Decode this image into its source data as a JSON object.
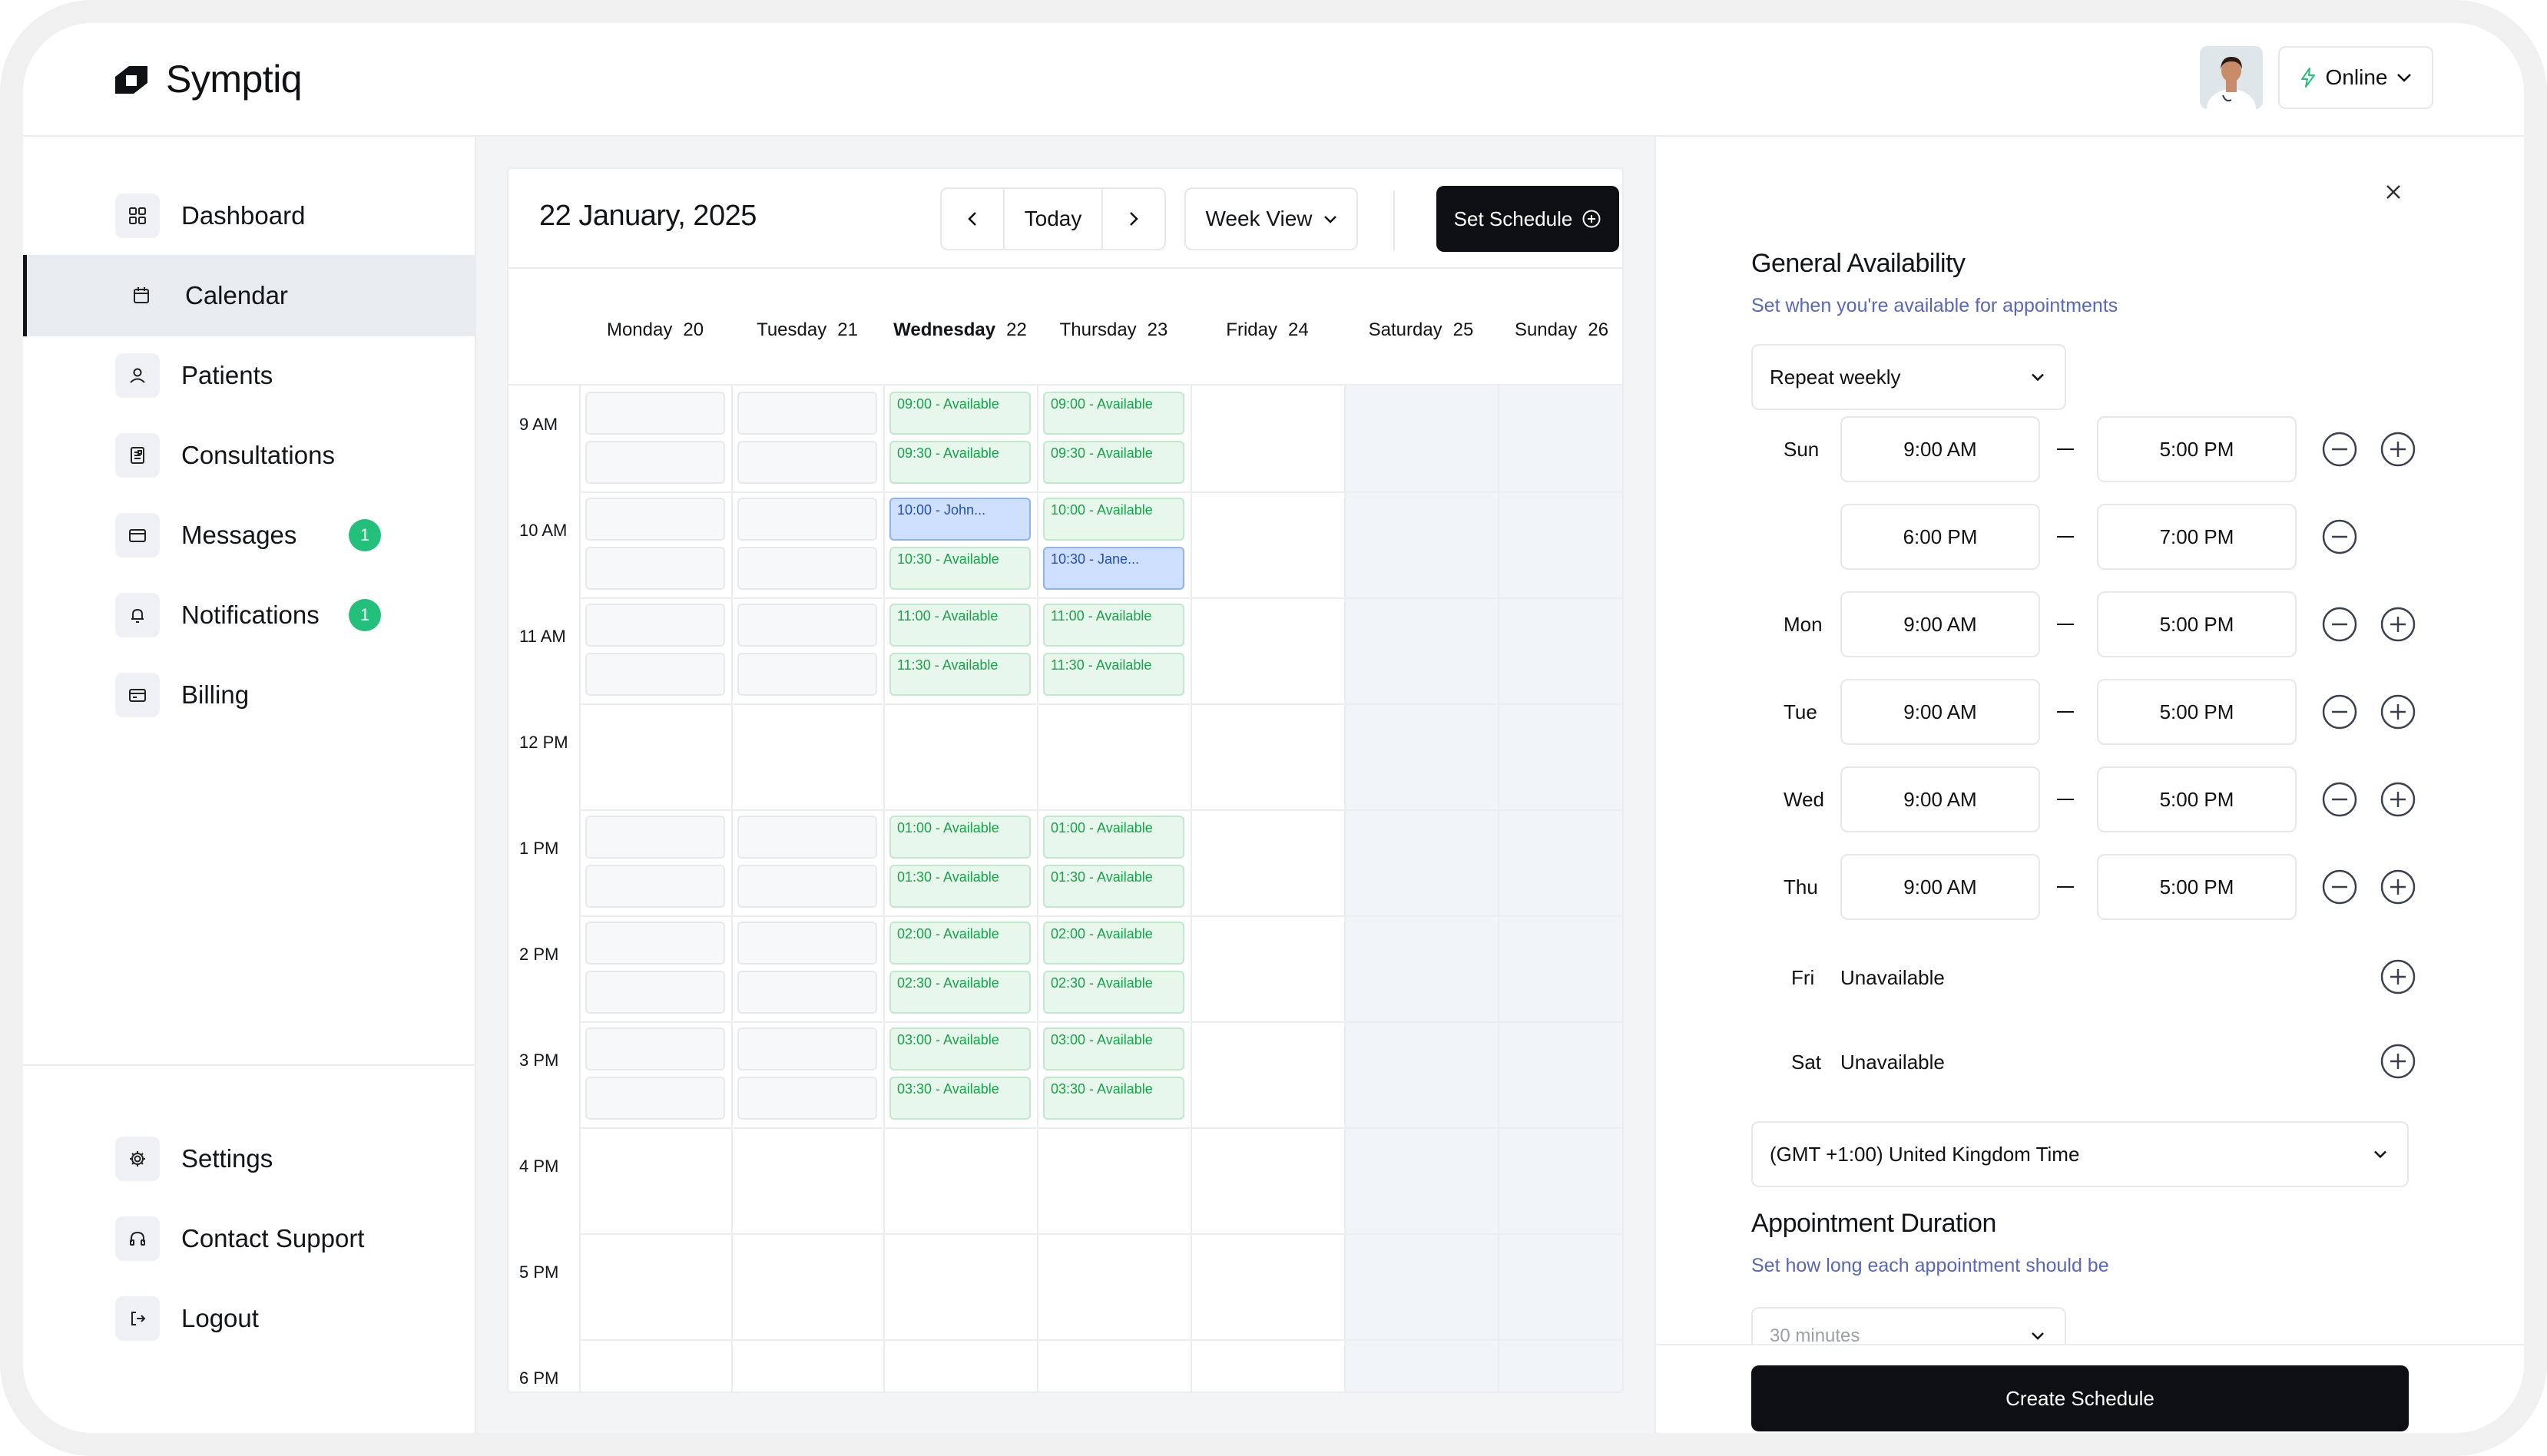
{
  "app": {
    "name": "Symptiq"
  },
  "header": {
    "status_label": "Online"
  },
  "sidebar": {
    "main_items": [
      {
        "label": "Dashboard",
        "icon": "dashboard-icon"
      },
      {
        "label": "Calendar",
        "icon": "calendar-icon",
        "active": true
      },
      {
        "label": "Patients",
        "icon": "user-icon"
      },
      {
        "label": "Consultations",
        "icon": "clipboard-icon"
      },
      {
        "label": "Messages",
        "icon": "mail-icon",
        "badge": "1"
      },
      {
        "label": "Notifications",
        "icon": "bell-icon",
        "badge": "1"
      },
      {
        "label": "Billing",
        "icon": "credit-card-icon"
      }
    ],
    "bottom_items": [
      {
        "label": "Settings",
        "icon": "gear-icon"
      },
      {
        "label": "Contact Support",
        "icon": "headset-icon"
      },
      {
        "label": "Logout",
        "icon": "logout-icon"
      }
    ]
  },
  "calendar": {
    "date_title": "22 January, 2025",
    "today_label": "Today",
    "view_label": "Week View",
    "set_schedule_label": "Set Schedule",
    "days": [
      {
        "name": "Monday",
        "num": "20"
      },
      {
        "name": "Tuesday",
        "num": "21"
      },
      {
        "name": "Wednesday",
        "num": "22",
        "current": true
      },
      {
        "name": "Thursday",
        "num": "23"
      },
      {
        "name": "Friday",
        "num": "24"
      },
      {
        "name": "Saturday",
        "num": "25"
      },
      {
        "name": "Sunday",
        "num": "26"
      }
    ],
    "hours": [
      "9 AM",
      "10 AM",
      "11 AM",
      "12 PM",
      "1 PM",
      "2 PM",
      "3 PM",
      "4 PM",
      "5 PM",
      "6 PM"
    ],
    "wednesday_slots": [
      {
        "hour": 0,
        "half": 0,
        "text": "09:00 - Available",
        "status": "available"
      },
      {
        "hour": 0,
        "half": 1,
        "text": "09:30 - Available",
        "status": "available"
      },
      {
        "hour": 1,
        "half": 0,
        "text": "10:00 - John...",
        "status": "booked"
      },
      {
        "hour": 1,
        "half": 1,
        "text": "10:30 - Available",
        "status": "available"
      },
      {
        "hour": 2,
        "half": 0,
        "text": "11:00 - Available",
        "status": "available"
      },
      {
        "hour": 2,
        "half": 1,
        "text": "11:30 - Available",
        "status": "available"
      },
      {
        "hour": 4,
        "half": 0,
        "text": "01:00 - Available",
        "status": "available"
      },
      {
        "hour": 4,
        "half": 1,
        "text": "01:30 - Available",
        "status": "available"
      },
      {
        "hour": 5,
        "half": 0,
        "text": "02:00 - Available",
        "status": "available"
      },
      {
        "hour": 5,
        "half": 1,
        "text": "02:30 - Available",
        "status": "available"
      },
      {
        "hour": 6,
        "half": 0,
        "text": "03:00 - Available",
        "status": "available"
      },
      {
        "hour": 6,
        "half": 1,
        "text": "03:30 - Available",
        "status": "available"
      }
    ],
    "thursday_slots": [
      {
        "hour": 0,
        "half": 0,
        "text": "09:00 - Available",
        "status": "available"
      },
      {
        "hour": 0,
        "half": 1,
        "text": "09:30 - Available",
        "status": "available"
      },
      {
        "hour": 1,
        "half": 0,
        "text": "10:00 - Available",
        "status": "available"
      },
      {
        "hour": 1,
        "half": 1,
        "text": "10:30 - Jane...",
        "status": "booked"
      },
      {
        "hour": 2,
        "half": 0,
        "text": "11:00 - Available",
        "status": "available"
      },
      {
        "hour": 2,
        "half": 1,
        "text": "11:30 - Available",
        "status": "available"
      },
      {
        "hour": 4,
        "half": 0,
        "text": "01:00 - Available",
        "status": "available"
      },
      {
        "hour": 4,
        "half": 1,
        "text": "01:30 - Available",
        "status": "available"
      },
      {
        "hour": 5,
        "half": 0,
        "text": "02:00 - Available",
        "status": "available"
      },
      {
        "hour": 5,
        "half": 1,
        "text": "02:30 - Available",
        "status": "available"
      },
      {
        "hour": 6,
        "half": 0,
        "text": "03:00 - Available",
        "status": "available"
      },
      {
        "hour": 6,
        "half": 1,
        "text": "03:30 - Available",
        "status": "available"
      }
    ]
  },
  "availability": {
    "title": "General Availability",
    "subtitle": "Set when you're available for appointments",
    "repeat_label": "Repeat weekly",
    "rows": [
      {
        "day": "Sun",
        "start": "9:00 AM",
        "end": "5:00 PM",
        "remove": true,
        "add": true
      },
      {
        "day": "",
        "start": "6:00 PM",
        "end": "7:00 PM",
        "remove": true,
        "add": false
      },
      {
        "day": "Mon",
        "start": "9:00 AM",
        "end": "5:00 PM",
        "remove": true,
        "add": true
      },
      {
        "day": "Tue",
        "start": "9:00 AM",
        "end": "5:00 PM",
        "remove": true,
        "add": true
      },
      {
        "day": "Wed",
        "start": "9:00 AM",
        "end": "5:00 PM",
        "remove": true,
        "add": true
      },
      {
        "day": "Thu",
        "start": "9:00 AM",
        "end": "5:00 PM",
        "remove": true,
        "add": true
      }
    ],
    "unavailable_rows": [
      {
        "day": "Fri",
        "text": "Unavailable"
      },
      {
        "day": "Sat",
        "text": "Unavailable"
      }
    ],
    "timezone": "(GMT +1:00) United Kingdom Time"
  },
  "duration": {
    "title": "Appointment Duration",
    "subtitle": "Set how long each appointment should be",
    "value": "30 minutes"
  },
  "create_label": "Create Schedule",
  "colors": {
    "accent": "#0e0f12",
    "badge": "#22c07a",
    "available": "#15a34a",
    "booked": "#1f4fb8",
    "subtitle": "#5867b8"
  }
}
